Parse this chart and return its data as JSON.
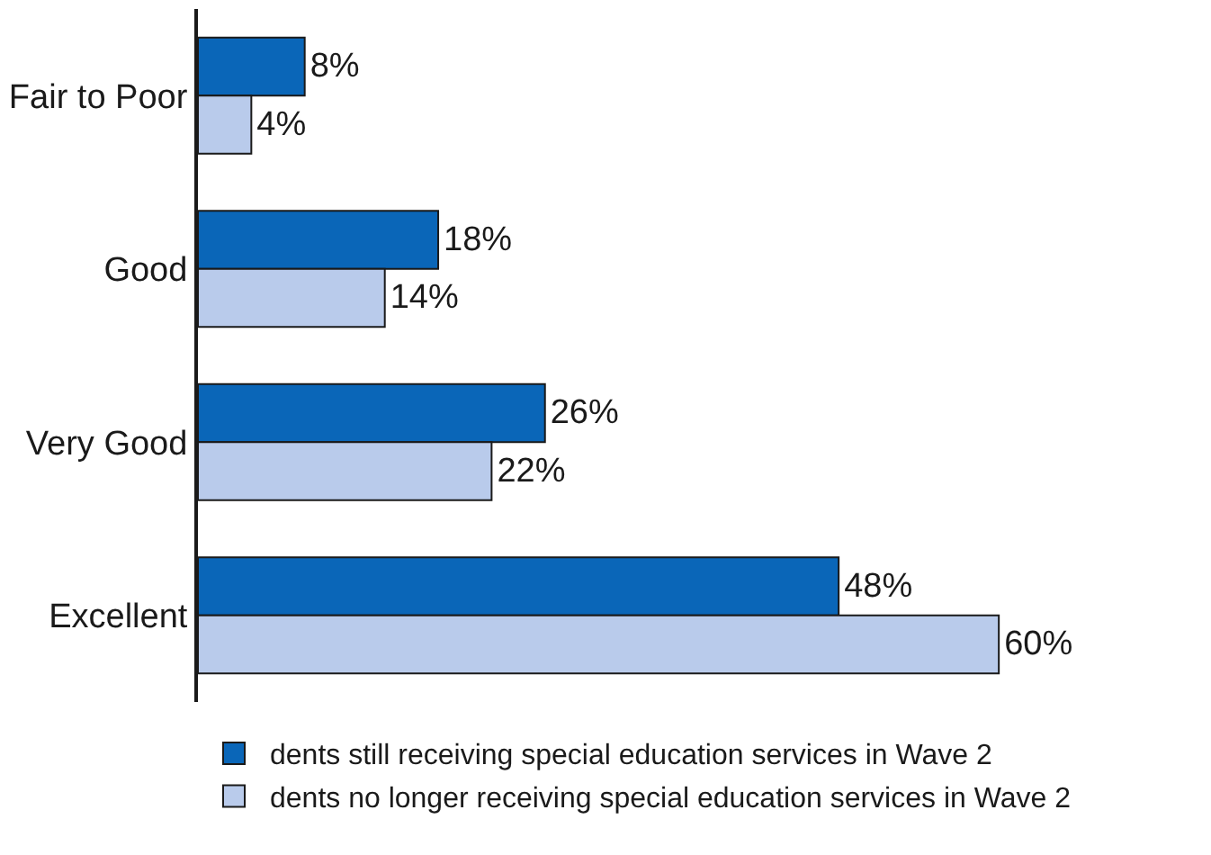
{
  "chart_data": {
    "type": "bar",
    "orientation": "horizontal",
    "categories": [
      "Fair to Poor",
      "Good",
      "Very Good",
      "Excellent"
    ],
    "series": [
      {
        "name": "dents still receiving special education services in Wave 2",
        "color": "#0a66b8",
        "values": [
          8,
          18,
          26,
          48
        ],
        "value_labels": [
          "8%",
          "18%",
          "26%",
          "48%"
        ]
      },
      {
        "name": "dents no longer receiving special education services in Wave 2",
        "color": "#b9cbeb",
        "values": [
          4,
          14,
          22,
          60
        ],
        "value_labels": [
          "4%",
          "14%",
          "22%",
          "60%"
        ]
      }
    ],
    "legend": "bottom",
    "tick_labels": "y"
  }
}
